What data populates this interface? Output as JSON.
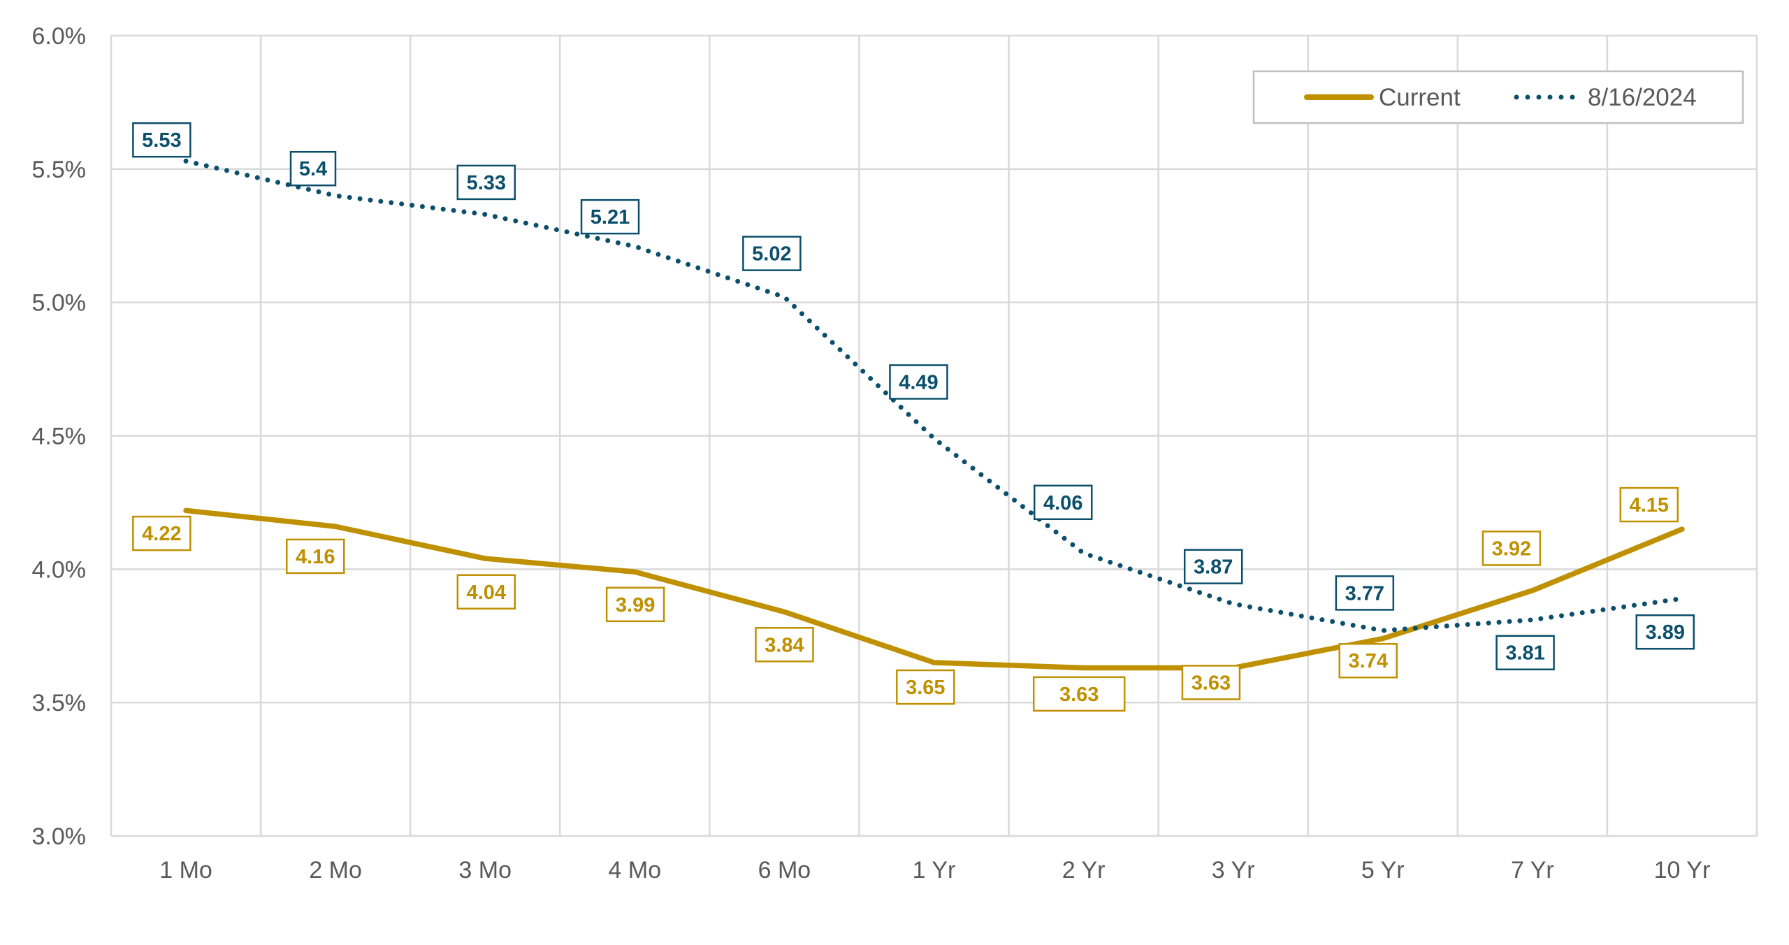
{
  "chart_data": {
    "type": "line",
    "title": "",
    "xlabel": "",
    "ylabel": "",
    "categories": [
      "1 Mo",
      "2 Mo",
      "3 Mo",
      "4 Mo",
      "6 Mo",
      "1 Yr",
      "2 Yr",
      "3 Yr",
      "5 Yr",
      "7 Yr",
      "10 Yr"
    ],
    "ylim": [
      3.0,
      6.0
    ],
    "yticks": [
      3.0,
      3.5,
      4.0,
      4.5,
      5.0,
      5.5,
      6.0
    ],
    "ytick_labels": [
      "3.0%",
      "3.5%",
      "4.0%",
      "4.5%",
      "5.0%",
      "5.5%",
      "6.0%"
    ],
    "grid": true,
    "legend_position": "top-right",
    "series": [
      {
        "name": "Current",
        "style": "solid",
        "color": "#BF9000",
        "values": [
          4.22,
          4.16,
          4.04,
          3.99,
          3.84,
          3.65,
          3.63,
          3.63,
          3.74,
          3.92,
          4.15
        ],
        "labels": [
          "4.22",
          "4.16",
          "4.04",
          "3.99",
          "3.84",
          "3.65",
          "3.63",
          "3.63",
          "3.74",
          "3.92",
          "4.15"
        ]
      },
      {
        "name": "8/16/2024",
        "style": "dotted",
        "color": "#0B4F6C",
        "values": [
          5.53,
          5.4,
          5.33,
          5.21,
          5.02,
          4.49,
          4.06,
          3.87,
          3.77,
          3.81,
          3.89
        ],
        "labels": [
          "5.53",
          "5.4",
          "5.33",
          "5.21",
          "5.02",
          "4.49",
          "4.06",
          "3.87",
          "3.77",
          "3.81",
          "3.89"
        ]
      }
    ]
  }
}
